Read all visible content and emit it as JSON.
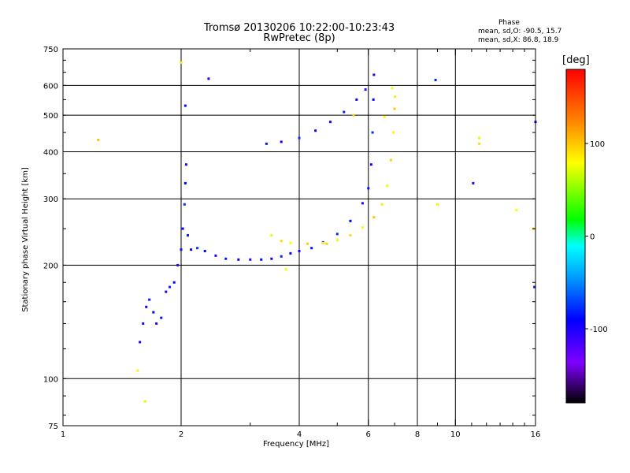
{
  "header": {
    "title_line1": "Tromsø 20130206 10:22:00-10:23:43",
    "title_line2": "RwPretec (8p)",
    "phase_title": "Phase",
    "phase_o": "mean, sd,O: -90.5, 15.7",
    "phase_x": "mean, sd,X:  86.8, 18.9"
  },
  "chart_data": {
    "type": "scatter",
    "xlabel": "Frequency [MHz]",
    "ylabel": "Stationary phase Virtual Height [km]",
    "x_scale": "log",
    "y_scale": "log",
    "xlim": [
      1,
      16
    ],
    "ylim": [
      75,
      750
    ],
    "xtick_labels": [
      "1",
      "2",
      "4",
      "6",
      "8",
      "10",
      "16"
    ],
    "xtick_values": [
      1,
      2,
      4,
      6,
      8,
      10,
      16
    ],
    "ytick_labels": [
      "750",
      "600",
      "500",
      "400",
      "300",
      "200",
      "100",
      "75"
    ],
    "ytick_values": [
      750,
      600,
      500,
      400,
      300,
      200,
      100,
      75
    ],
    "grid_x": [
      2,
      4,
      6,
      8,
      10
    ],
    "grid_y": [
      600,
      500,
      400,
      300,
      200,
      100
    ],
    "colorbar": {
      "label": "[deg]",
      "min": -180,
      "max": 180,
      "tick_labels": [
        "100",
        "0",
        "-100"
      ],
      "tick_values": [
        100,
        0,
        -100
      ],
      "colors": [
        "#000000",
        "#8000ff",
        "#0000ff",
        "#00a0ff",
        "#00ffff",
        "#00ff00",
        "#ffff00",
        "#ff8000",
        "#ff0000"
      ]
    },
    "series": [
      {
        "trace": "O-mode",
        "mean_phase": -90.5,
        "points": [
          [
            1.57,
            125
          ],
          [
            1.6,
            140
          ],
          [
            1.63,
            155
          ],
          [
            1.66,
            162
          ],
          [
            1.7,
            150
          ],
          [
            1.73,
            140
          ],
          [
            1.78,
            145
          ],
          [
            1.83,
            170
          ],
          [
            1.87,
            175
          ],
          [
            1.92,
            180
          ],
          [
            1.96,
            200
          ],
          [
            2.0,
            220
          ],
          [
            2.02,
            250
          ],
          [
            2.04,
            290
          ],
          [
            2.05,
            330
          ],
          [
            2.06,
            370
          ],
          [
            2.08,
            240
          ],
          [
            2.12,
            220
          ],
          [
            2.2,
            222
          ],
          [
            2.3,
            218
          ],
          [
            2.45,
            212
          ],
          [
            2.6,
            208
          ],
          [
            2.8,
            207
          ],
          [
            3.0,
            207
          ],
          [
            3.2,
            207
          ],
          [
            3.4,
            208
          ],
          [
            3.6,
            211
          ],
          [
            3.8,
            215
          ],
          [
            4.0,
            218
          ],
          [
            4.3,
            222
          ],
          [
            4.6,
            230
          ],
          [
            5.0,
            242
          ],
          [
            5.4,
            262
          ],
          [
            5.8,
            292
          ],
          [
            6.0,
            320
          ],
          [
            6.1,
            370
          ],
          [
            6.15,
            450
          ],
          [
            6.18,
            550
          ],
          [
            6.2,
            640
          ],
          [
            3.3,
            420
          ],
          [
            3.6,
            425
          ],
          [
            4.0,
            435
          ],
          [
            4.4,
            455
          ],
          [
            4.8,
            480
          ],
          [
            5.2,
            510
          ],
          [
            5.6,
            550
          ],
          [
            5.9,
            585
          ],
          [
            2.05,
            530
          ],
          [
            2.35,
            625
          ],
          [
            8.9,
            620
          ],
          [
            16,
            480
          ],
          [
            11.1,
            330
          ],
          [
            15.9,
            175
          ]
        ]
      },
      {
        "trace": "X-mode",
        "mean_phase": 86.8,
        "points": [
          [
            3.4,
            240
          ],
          [
            3.6,
            232
          ],
          [
            3.8,
            229
          ],
          [
            4.2,
            228
          ],
          [
            4.6,
            229
          ],
          [
            5.0,
            233
          ],
          [
            5.4,
            240
          ],
          [
            5.8,
            252
          ],
          [
            6.2,
            268
          ],
          [
            6.5,
            290
          ],
          [
            6.7,
            325
          ],
          [
            6.85,
            380
          ],
          [
            6.95,
            450
          ],
          [
            7.0,
            520
          ],
          [
            7.02,
            560
          ],
          [
            6.9,
            590
          ],
          [
            5.5,
            500
          ],
          [
            6.6,
            495
          ],
          [
            1.23,
            430
          ],
          [
            2.0,
            690
          ],
          [
            3.7,
            195
          ],
          [
            4.7,
            228
          ],
          [
            9.0,
            290
          ],
          [
            11.5,
            435
          ],
          [
            11.5,
            420
          ],
          [
            14.3,
            280
          ],
          [
            15.8,
            250
          ],
          [
            1.55,
            105
          ],
          [
            1.62,
            87
          ]
        ]
      }
    ]
  }
}
